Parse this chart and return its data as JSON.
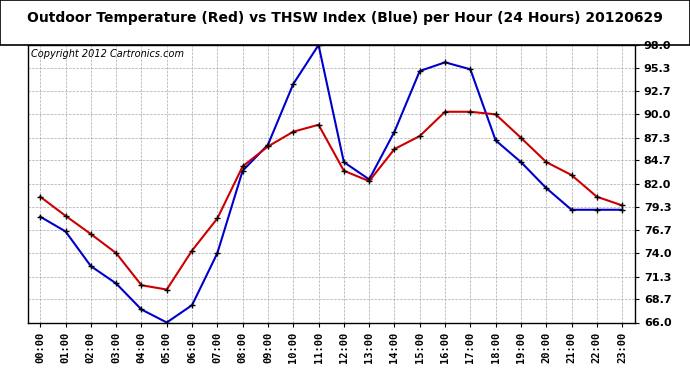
{
  "title": "Outdoor Temperature (Red) vs THSW Index (Blue) per Hour (24 Hours) 20120629",
  "copyright": "Copyright 2012 Cartronics.com",
  "hours": [
    "00:00",
    "01:00",
    "02:00",
    "03:00",
    "04:00",
    "05:00",
    "06:00",
    "07:00",
    "08:00",
    "09:00",
    "10:00",
    "11:00",
    "12:00",
    "13:00",
    "14:00",
    "15:00",
    "16:00",
    "17:00",
    "18:00",
    "19:00",
    "20:00",
    "21:00",
    "22:00",
    "23:00"
  ],
  "red_temp": [
    80.5,
    78.3,
    76.2,
    74.0,
    70.3,
    69.8,
    74.3,
    78.0,
    84.0,
    86.3,
    88.0,
    88.8,
    83.5,
    82.3,
    86.0,
    87.5,
    90.3,
    90.3,
    90.0,
    87.3,
    84.5,
    83.0,
    80.5,
    79.5
  ],
  "blue_thsw": [
    78.2,
    76.5,
    72.5,
    70.5,
    67.5,
    66.0,
    68.0,
    74.0,
    83.5,
    86.5,
    93.5,
    98.0,
    84.5,
    82.5,
    88.0,
    95.0,
    96.0,
    95.2,
    87.0,
    84.5,
    81.5,
    79.0,
    79.0,
    79.0
  ],
  "ylim_min": 66.0,
  "ylim_max": 98.0,
  "yticks": [
    66.0,
    68.7,
    71.3,
    74.0,
    76.7,
    79.3,
    82.0,
    84.7,
    87.3,
    90.0,
    92.7,
    95.3,
    98.0
  ],
  "bg_color": "#ffffff",
  "grid_color": "#aaaaaa",
  "red_color": "#cc0000",
  "blue_color": "#0000cc",
  "title_fontsize": 10,
  "copyright_fontsize": 7,
  "tick_fontsize": 8,
  "xtick_fontsize": 7.5
}
